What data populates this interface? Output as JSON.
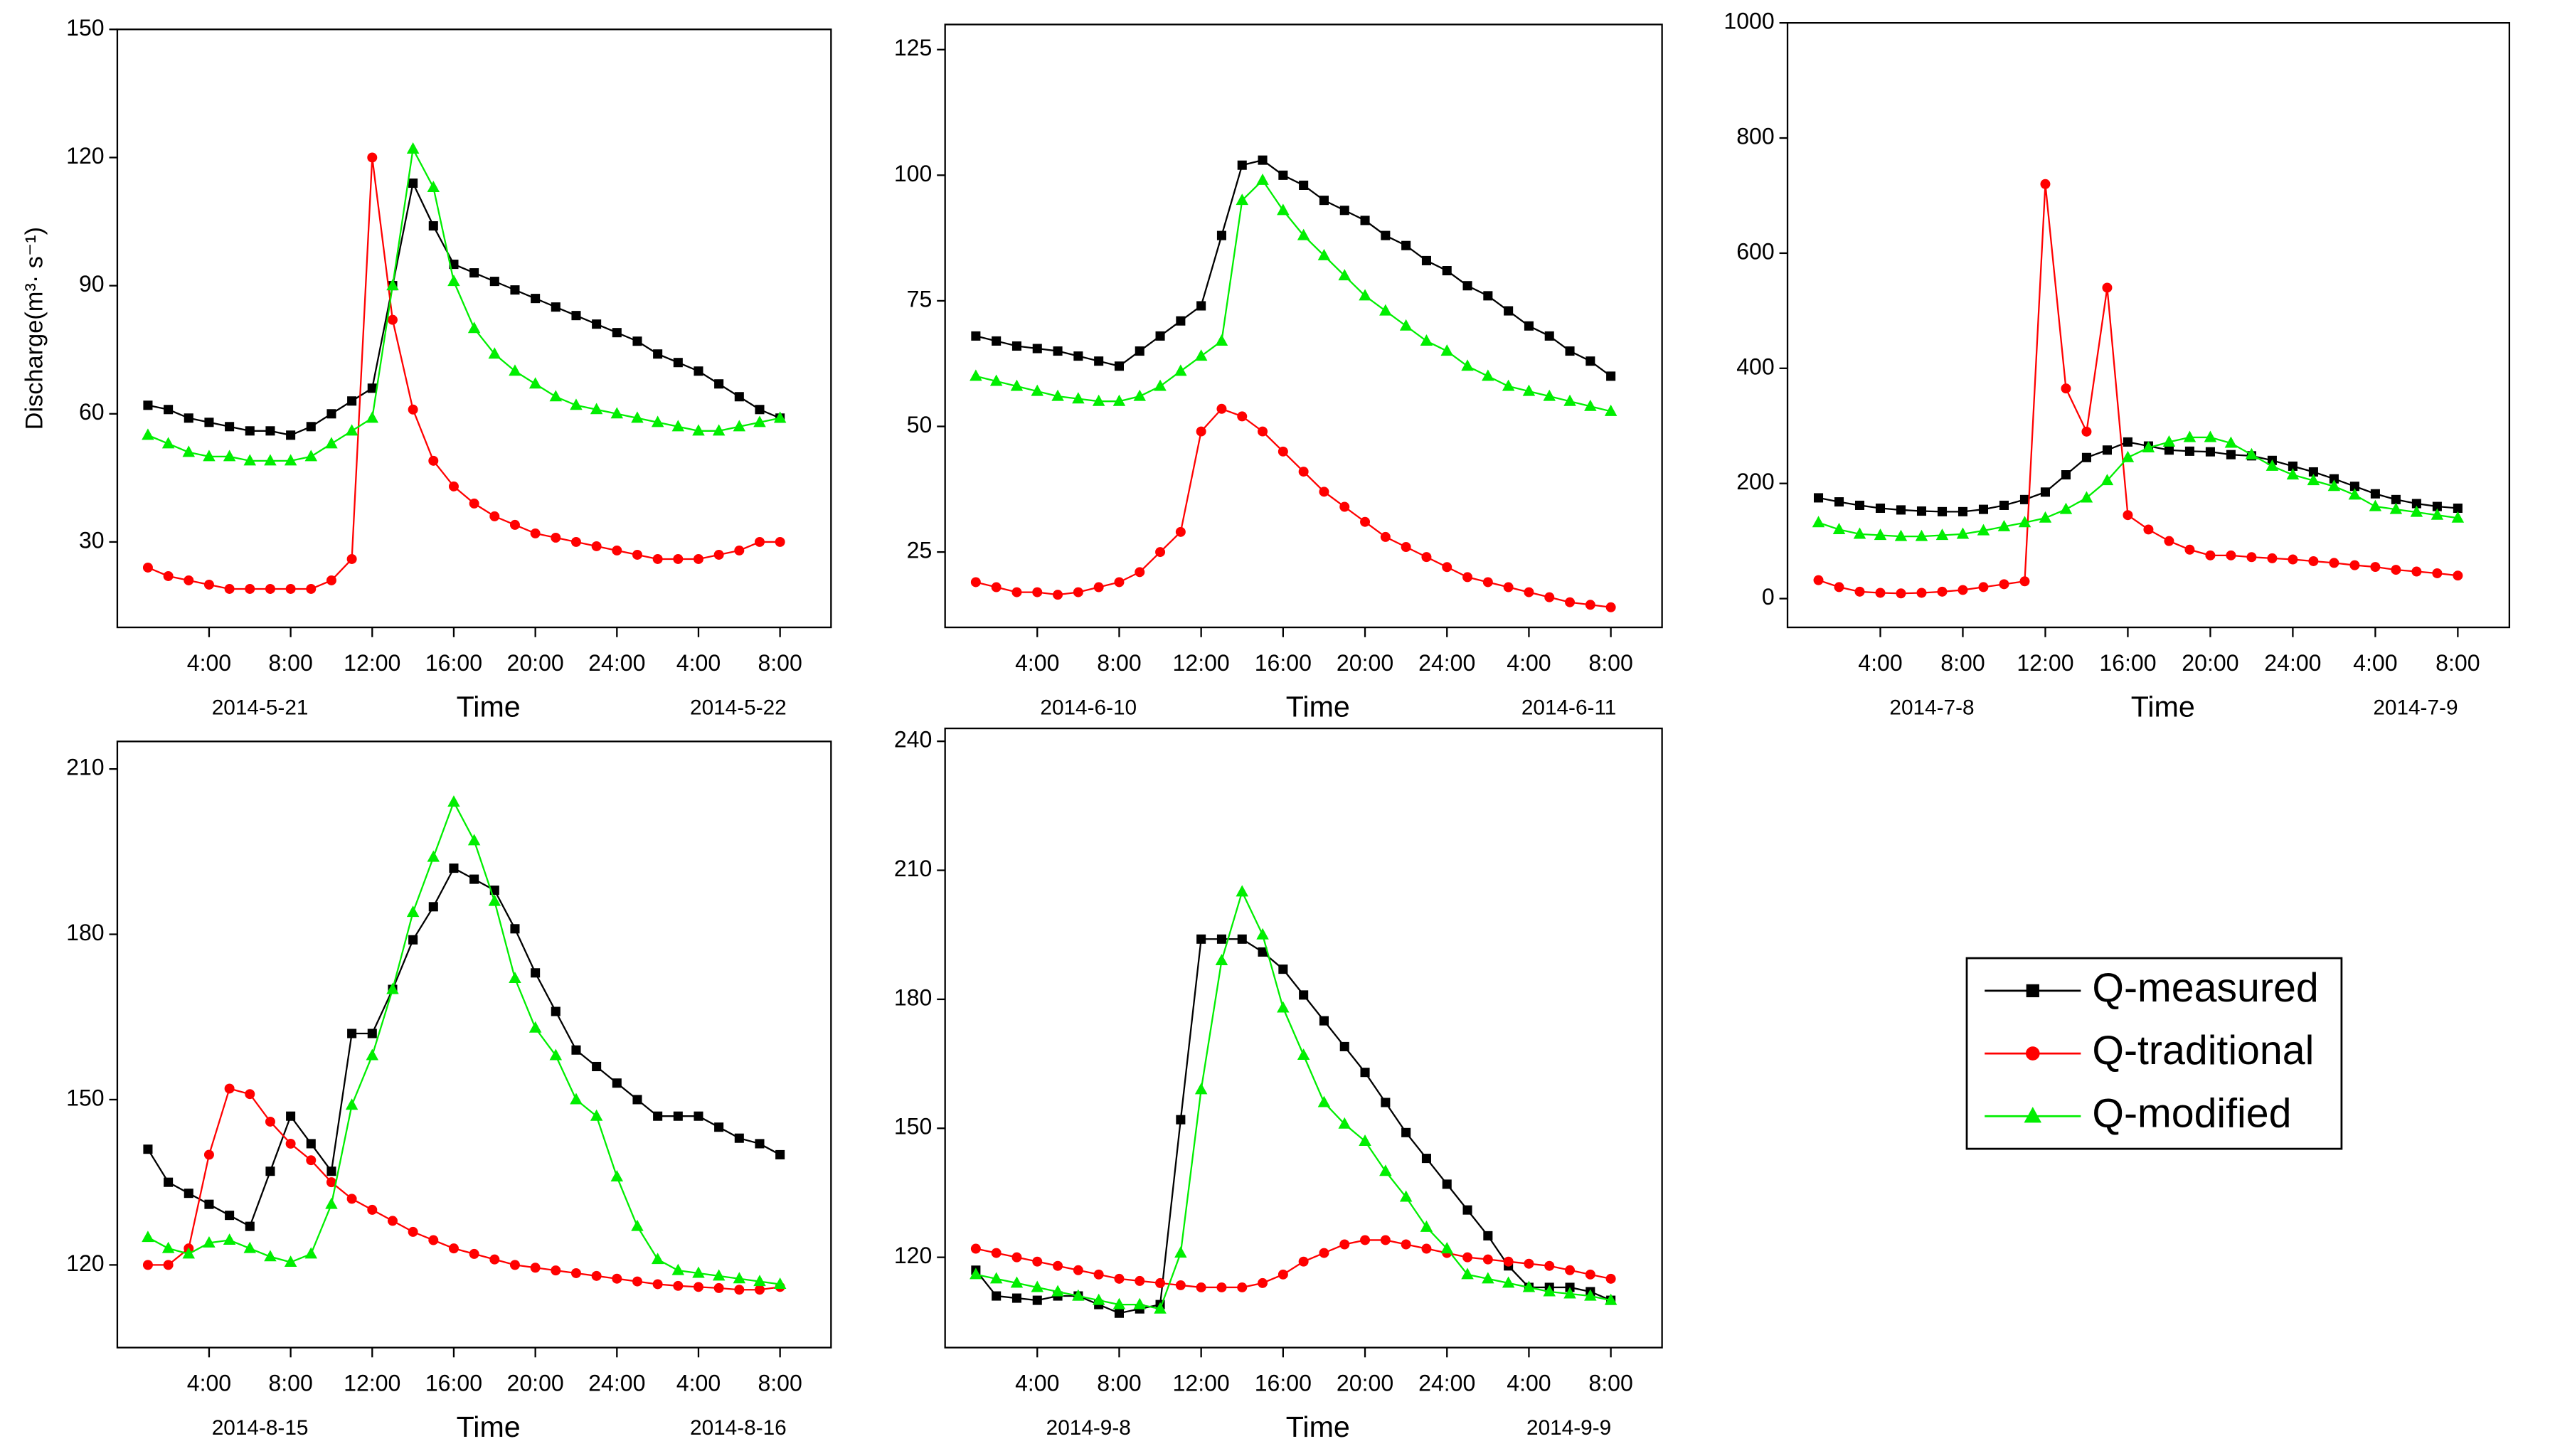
{
  "chart_data": [
    {
      "type": "line",
      "ylabel": "Discharge(m³· s⁻¹)",
      "xlabel": "Time",
      "dates": [
        "2014-5-21",
        "2014-5-22"
      ],
      "x": [
        1,
        2,
        3,
        4,
        5,
        6,
        7,
        8,
        9,
        10,
        11,
        12,
        13,
        14,
        15,
        16,
        17,
        18,
        19,
        20,
        21,
        22,
        23,
        24,
        25,
        26,
        27,
        28,
        29,
        30,
        31,
        32
      ],
      "xlim": [
        -0.5,
        34.5
      ],
      "xticks": [
        {
          "value": 4,
          "label": "4:00"
        },
        {
          "value": 8,
          "label": "8:00"
        },
        {
          "value": 12,
          "label": "12:00"
        },
        {
          "value": 16,
          "label": "16:00"
        },
        {
          "value": 20,
          "label": "20:00"
        },
        {
          "value": 24,
          "label": "24:00"
        },
        {
          "value": 28,
          "label": "4:00"
        },
        {
          "value": 32,
          "label": "8:00"
        }
      ],
      "ylim": [
        10,
        150
      ],
      "yticks": [
        30,
        60,
        90,
        120,
        150
      ],
      "series": [
        {
          "name": "Q-measured",
          "color": "#000000",
          "marker": "square",
          "values": [
            62,
            61,
            59,
            58,
            57,
            56,
            56,
            55,
            57,
            60,
            63,
            66,
            90,
            114,
            104,
            95,
            93,
            91,
            89,
            87,
            85,
            83,
            81,
            79,
            77,
            74,
            72,
            70,
            67,
            64,
            61,
            59
          ]
        },
        {
          "name": "Q-traditional",
          "color": "#ff0000",
          "marker": "circle",
          "values": [
            24,
            22,
            21,
            20,
            19,
            19,
            19,
            19,
            19,
            21,
            26,
            120,
            82,
            61,
            49,
            43,
            39,
            36,
            34,
            32,
            31,
            30,
            29,
            28,
            27,
            26,
            26,
            26,
            27,
            28,
            30,
            30
          ]
        },
        {
          "name": "Q-modified",
          "color": "#00ee00",
          "marker": "triangle",
          "values": [
            55,
            53,
            51,
            50,
            50,
            49,
            49,
            49,
            50,
            53,
            56,
            59,
            90,
            122,
            113,
            91,
            80,
            74,
            70,
            67,
            64,
            62,
            61,
            60,
            59,
            58,
            57,
            56,
            56,
            57,
            58,
            59
          ]
        }
      ]
    },
    {
      "type": "line",
      "xlabel": "Time",
      "dates": [
        "2014-6-10",
        "2014-6-11"
      ],
      "x": [
        1,
        2,
        3,
        4,
        5,
        6,
        7,
        8,
        9,
        10,
        11,
        12,
        13,
        14,
        15,
        16,
        17,
        18,
        19,
        20,
        21,
        22,
        23,
        24,
        25,
        26,
        27,
        28,
        29,
        30,
        31,
        32
      ],
      "xlim": [
        -0.5,
        34.5
      ],
      "xticks": [
        {
          "value": 4,
          "label": "4:00"
        },
        {
          "value": 8,
          "label": "8:00"
        },
        {
          "value": 12,
          "label": "12:00"
        },
        {
          "value": 16,
          "label": "16:00"
        },
        {
          "value": 20,
          "label": "20:00"
        },
        {
          "value": 24,
          "label": "24:00"
        },
        {
          "value": 28,
          "label": "4:00"
        },
        {
          "value": 32,
          "label": "8:00"
        }
      ],
      "ylim": [
        10,
        130
      ],
      "yticks": [
        25,
        50,
        75,
        100,
        125
      ],
      "series": [
        {
          "name": "Q-measured",
          "color": "#000000",
          "marker": "square",
          "values": [
            68,
            67,
            66,
            65.5,
            65,
            64,
            63,
            62,
            65,
            68,
            71,
            74,
            88,
            102,
            103,
            100,
            98,
            95,
            93,
            91,
            88,
            86,
            83,
            81,
            78,
            76,
            73,
            70,
            68,
            65,
            63,
            60
          ]
        },
        {
          "name": "Q-traditional",
          "color": "#ff0000",
          "marker": "circle",
          "values": [
            19,
            18,
            17,
            17,
            16.5,
            17,
            18,
            19,
            21,
            25,
            29,
            49,
            53.5,
            52,
            49,
            45,
            41,
            37,
            34,
            31,
            28,
            26,
            24,
            22,
            20,
            19,
            18,
            17,
            16,
            15,
            14.5,
            14
          ]
        },
        {
          "name": "Q-modified",
          "color": "#00ee00",
          "marker": "triangle",
          "values": [
            60,
            59,
            58,
            57,
            56,
            55.5,
            55,
            55,
            56,
            58,
            61,
            64,
            67,
            95,
            99,
            93,
            88,
            84,
            80,
            76,
            73,
            70,
            67,
            65,
            62,
            60,
            58,
            57,
            56,
            55,
            54,
            53
          ]
        }
      ]
    },
    {
      "type": "line",
      "xlabel": "Time",
      "dates": [
        "2014-7-8",
        "2014-7-9"
      ],
      "x": [
        1,
        2,
        3,
        4,
        5,
        6,
        7,
        8,
        9,
        10,
        11,
        12,
        13,
        14,
        15,
        16,
        17,
        18,
        19,
        20,
        21,
        22,
        23,
        24,
        25,
        26,
        27,
        28,
        29,
        30,
        31,
        32
      ],
      "xlim": [
        -0.5,
        34.5
      ],
      "xticks": [
        {
          "value": 4,
          "label": "4:00"
        },
        {
          "value": 8,
          "label": "8:00"
        },
        {
          "value": 12,
          "label": "12:00"
        },
        {
          "value": 16,
          "label": "16:00"
        },
        {
          "value": 20,
          "label": "20:00"
        },
        {
          "value": 24,
          "label": "24:00"
        },
        {
          "value": 28,
          "label": "4:00"
        },
        {
          "value": 32,
          "label": "8:00"
        }
      ],
      "ylim": [
        -50,
        1000
      ],
      "yticks": [
        0,
        200,
        400,
        600,
        800,
        1000
      ],
      "series": [
        {
          "name": "Q-measured",
          "color": "#000000",
          "marker": "square",
          "values": [
            175,
            168,
            162,
            157,
            154,
            152,
            151,
            151,
            155,
            162,
            172,
            185,
            215,
            245,
            258,
            272,
            265,
            258,
            256,
            255,
            250,
            248,
            240,
            230,
            220,
            208,
            195,
            182,
            172,
            165,
            160,
            157
          ]
        },
        {
          "name": "Q-traditional",
          "color": "#ff0000",
          "marker": "circle",
          "values": [
            32,
            20,
            12,
            10,
            9,
            10,
            12,
            15,
            20,
            25,
            30,
            720,
            365,
            290,
            540,
            145,
            120,
            100,
            85,
            75,
            75,
            72,
            70,
            68,
            65,
            62,
            58,
            55,
            50,
            47,
            44,
            40
          ]
        },
        {
          "name": "Q-modified",
          "color": "#00ee00",
          "marker": "triangle",
          "values": [
            132,
            120,
            112,
            110,
            108,
            108,
            110,
            112,
            118,
            125,
            132,
            140,
            155,
            175,
            205,
            245,
            262,
            272,
            280,
            280,
            270,
            250,
            230,
            215,
            205,
            195,
            180,
            160,
            155,
            150,
            145,
            140
          ]
        }
      ]
    },
    {
      "type": "line",
      "xlabel": "Time",
      "dates": [
        "2014-8-15",
        "2014-8-16"
      ],
      "x": [
        1,
        2,
        3,
        4,
        5,
        6,
        7,
        8,
        9,
        10,
        11,
        12,
        13,
        14,
        15,
        16,
        17,
        18,
        19,
        20,
        21,
        22,
        23,
        24,
        25,
        26,
        27,
        28,
        29,
        30,
        31,
        32
      ],
      "xlim": [
        -0.5,
        34.5
      ],
      "xticks": [
        {
          "value": 4,
          "label": "4:00"
        },
        {
          "value": 8,
          "label": "8:00"
        },
        {
          "value": 12,
          "label": "12:00"
        },
        {
          "value": 16,
          "label": "16:00"
        },
        {
          "value": 20,
          "label": "20:00"
        },
        {
          "value": 24,
          "label": "24:00"
        },
        {
          "value": 28,
          "label": "4:00"
        },
        {
          "value": 32,
          "label": "8:00"
        }
      ],
      "ylim": [
        105,
        215
      ],
      "yticks": [
        120,
        150,
        180,
        210
      ],
      "series": [
        {
          "name": "Q-measured",
          "color": "#000000",
          "marker": "square",
          "values": [
            141,
            135,
            133,
            131,
            129,
            127,
            137,
            147,
            142,
            137,
            162,
            162,
            170,
            179,
            185,
            192,
            190,
            188,
            181,
            173,
            166,
            159,
            156,
            153,
            150,
            147,
            147,
            147,
            145,
            143,
            142,
            140
          ]
        },
        {
          "name": "Q-traditional",
          "color": "#ff0000",
          "marker": "circle",
          "values": [
            120,
            120,
            123,
            140,
            152,
            151,
            146,
            142,
            139,
            135,
            132,
            130,
            128,
            126,
            124.5,
            123,
            122,
            121,
            120,
            119.5,
            119,
            118.5,
            118,
            117.5,
            117,
            116.5,
            116.2,
            116,
            115.8,
            115.5,
            115.5,
            116
          ]
        },
        {
          "name": "Q-modified",
          "color": "#00ee00",
          "marker": "triangle",
          "values": [
            125,
            123,
            122,
            124,
            124.5,
            123,
            121.5,
            120.5,
            122,
            131,
            149,
            158,
            170,
            184,
            194,
            204,
            197,
            186,
            172,
            163,
            158,
            150,
            147,
            136,
            127,
            121,
            119,
            118.5,
            118,
            117.5,
            117,
            116.5
          ]
        }
      ]
    },
    {
      "type": "line",
      "xlabel": "Time",
      "dates": [
        "2014-9-8",
        "2014-9-9"
      ],
      "x": [
        1,
        2,
        3,
        4,
        5,
        6,
        7,
        8,
        9,
        10,
        11,
        12,
        13,
        14,
        15,
        16,
        17,
        18,
        19,
        20,
        21,
        22,
        23,
        24,
        25,
        26,
        27,
        28,
        29,
        30,
        31,
        32
      ],
      "xlim": [
        -0.5,
        34.5
      ],
      "xticks": [
        {
          "value": 4,
          "label": "4:00"
        },
        {
          "value": 8,
          "label": "8:00"
        },
        {
          "value": 12,
          "label": "12:00"
        },
        {
          "value": 16,
          "label": "16:00"
        },
        {
          "value": 20,
          "label": "20:00"
        },
        {
          "value": 24,
          "label": "24:00"
        },
        {
          "value": 28,
          "label": "4:00"
        },
        {
          "value": 32,
          "label": "8:00"
        }
      ],
      "ylim": [
        99,
        243
      ],
      "yticks": [
        120,
        150,
        180,
        210,
        240
      ],
      "series": [
        {
          "name": "Q-measured",
          "color": "#000000",
          "marker": "square",
          "values": [
            117,
            111,
            110.5,
            110,
            111,
            111,
            109,
            107,
            108,
            109,
            152,
            194,
            194,
            194,
            191,
            187,
            181,
            175,
            169,
            163,
            156,
            149,
            143,
            137,
            131,
            125,
            118,
            113,
            113,
            113,
            112,
            110
          ]
        },
        {
          "name": "Q-traditional",
          "color": "#ff0000",
          "marker": "circle",
          "values": [
            122,
            121,
            120,
            119,
            118,
            117,
            116,
            115,
            114.5,
            114,
            113.5,
            113,
            113,
            113,
            114,
            116,
            119,
            121,
            123,
            124,
            124,
            123,
            122,
            121,
            120,
            119.5,
            119,
            118.5,
            118,
            117,
            116,
            115
          ]
        },
        {
          "name": "Q-modified",
          "color": "#00ee00",
          "marker": "triangle",
          "values": [
            116,
            115,
            114,
            113,
            112,
            111,
            110,
            109,
            109,
            108,
            121,
            159,
            189,
            205,
            195,
            178,
            167,
            156,
            151,
            147,
            140,
            134,
            127,
            122,
            116,
            115,
            114,
            113,
            112,
            111.5,
            111,
            110
          ]
        }
      ]
    }
  ]
}
